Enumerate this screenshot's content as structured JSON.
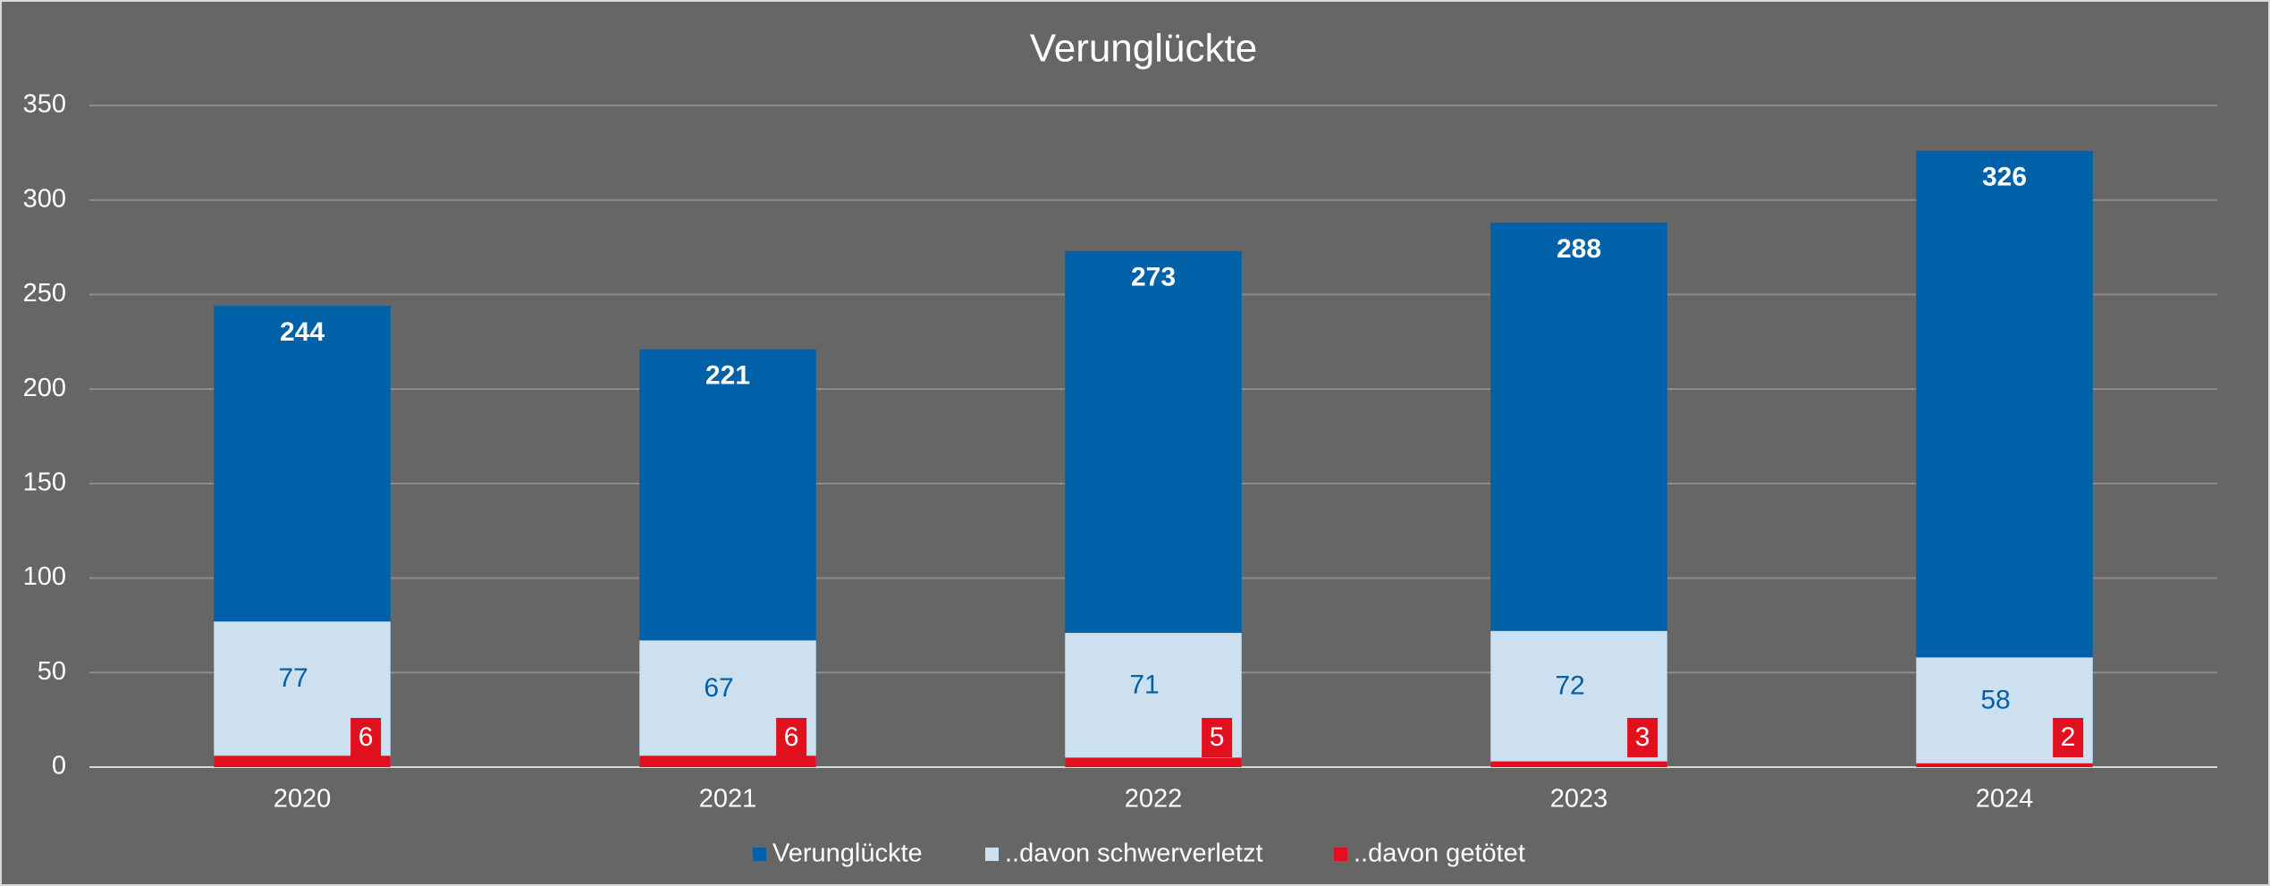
{
  "chart_data": {
    "type": "bar",
    "title": "Verunglückte",
    "categories": [
      "2020",
      "2021",
      "2022",
      "2023",
      "2024"
    ],
    "series": [
      {
        "name": "Verunglückte",
        "color": "#0060a8",
        "values": [
          244,
          221,
          273,
          288,
          326
        ]
      },
      {
        "name": "..davon schwerverletzt",
        "color": "#cce0ef",
        "values": [
          77,
          67,
          71,
          72,
          58
        ]
      },
      {
        "name": "..davon getötet",
        "color": "#e0101e",
        "values": [
          6,
          6,
          5,
          3,
          2
        ]
      }
    ],
    "ylim": [
      0,
      350
    ],
    "yticks": [
      0,
      50,
      100,
      150,
      200,
      250,
      300,
      350
    ],
    "grid": true,
    "legend": "bottom"
  }
}
